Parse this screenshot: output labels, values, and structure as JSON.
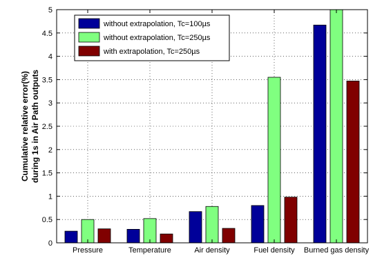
{
  "chart_data": {
    "type": "bar",
    "title": "",
    "xlabel": "",
    "ylabel": [
      "Cumulative relative error(%)",
      "during 1s in Air Path outputs"
    ],
    "ylim": [
      0,
      5
    ],
    "yticks": [
      "0",
      "0.5",
      "1",
      "1.5",
      "2",
      "2.5",
      "3",
      "3.5",
      "4",
      "4.5",
      "5"
    ],
    "grid": "dotted",
    "legend_position": "top-left",
    "categories": [
      "Pressure",
      "Temperature",
      "Air density",
      "Fuel density",
      "Burned gas density"
    ],
    "series": [
      {
        "name": "without extrapolation, Tc=100µs",
        "color": "#000099",
        "values": [
          0.25,
          0.29,
          0.67,
          0.8,
          4.67
        ]
      },
      {
        "name": "without extrapolation, Tc=250µs",
        "color": "#80ff80",
        "values": [
          0.5,
          0.52,
          0.78,
          3.55,
          5.0
        ]
      },
      {
        "name": "with extrapolation, Tc=250µs",
        "color": "#800000",
        "values": [
          0.3,
          0.19,
          0.31,
          0.98,
          3.47
        ]
      }
    ]
  }
}
